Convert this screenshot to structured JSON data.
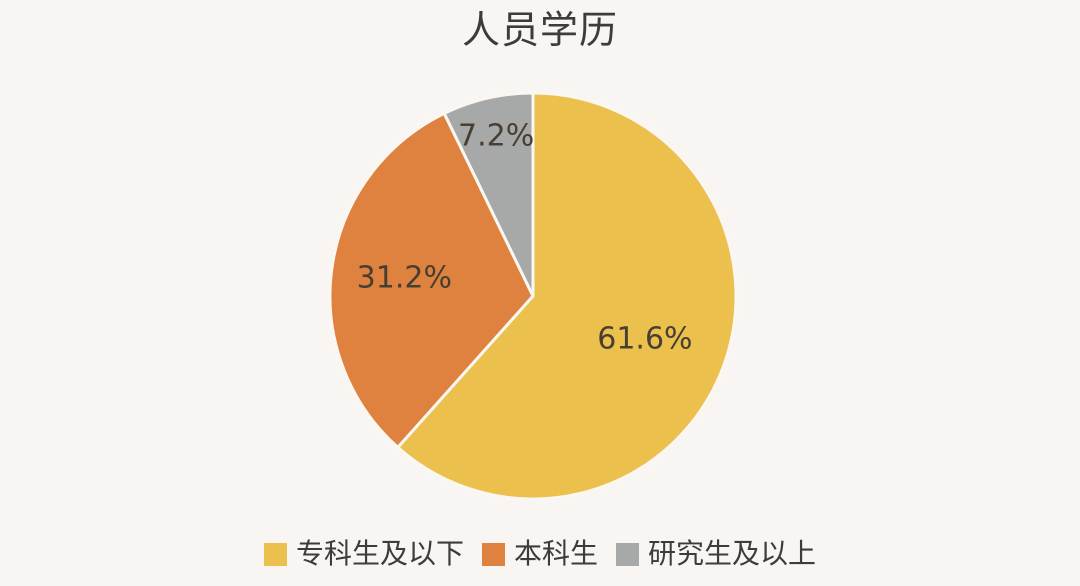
{
  "page": {
    "background": "#f8f5f2"
  },
  "chart_data": {
    "type": "pie",
    "title": "人员学历",
    "labels": [
      "专科生及以下",
      "本科生",
      "研究生及以上"
    ],
    "values": [
      61.6,
      31.2,
      7.2
    ],
    "value_labels": [
      "61.6%",
      "31.2%",
      "7.2%"
    ],
    "colors": [
      "#ecc04d",
      "#e0823f",
      "#a7a8a8"
    ],
    "slice_label_color": "#473f31",
    "title_color": "#3c3c3c",
    "legend_text_color": "#3c3c3c",
    "separator_color": "#faf7f3",
    "start_angle": "12-oclock",
    "direction": "clockwise",
    "legend_position": "bottom",
    "labels_inside": true
  }
}
